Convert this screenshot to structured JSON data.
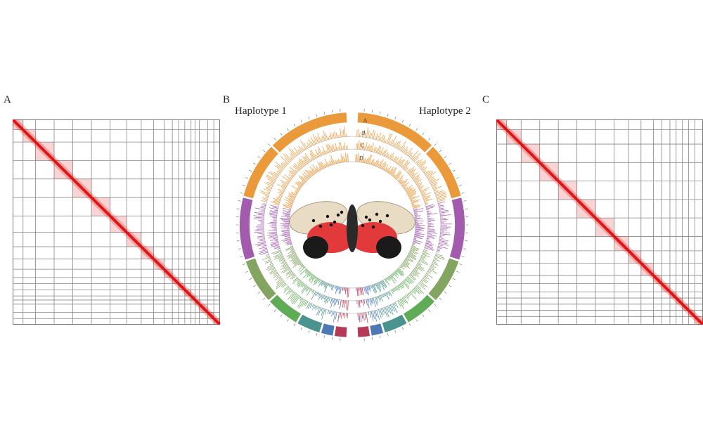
{
  "figure": {
    "panels": [
      {
        "letter": "A"
      },
      {
        "letter": "B"
      },
      {
        "letter": "C"
      }
    ],
    "circos": {
      "haplotype_left": "Haplotype 1",
      "haplotype_right": "Haplotype 2",
      "track_letters": [
        "A",
        "B",
        "C",
        "D"
      ]
    },
    "heatmap_left": {
      "grid_divisions": [
        0.05,
        0.11,
        0.2,
        0.29,
        0.38,
        0.47,
        0.55,
        0.62,
        0.68,
        0.73,
        0.77,
        0.8,
        0.83,
        0.86,
        0.88,
        0.9,
        0.94,
        0.97
      ],
      "diag_color": "#e01010"
    },
    "heatmap_right": {
      "grid_divisions": [
        0.05,
        0.12,
        0.21,
        0.3,
        0.39,
        0.48,
        0.57,
        0.64,
        0.7,
        0.76,
        0.8,
        0.84,
        0.87,
        0.9,
        0.93,
        0.96
      ],
      "diag_color": "#e01010"
    },
    "colors": {
      "orange": "#e8902a",
      "purple": "#9b4ea6",
      "green": "#52a447",
      "teal": "#3c8a85",
      "blue": "#3d6cb0",
      "crimson": "#b0284a",
      "olive": "#7a9c55"
    }
  }
}
